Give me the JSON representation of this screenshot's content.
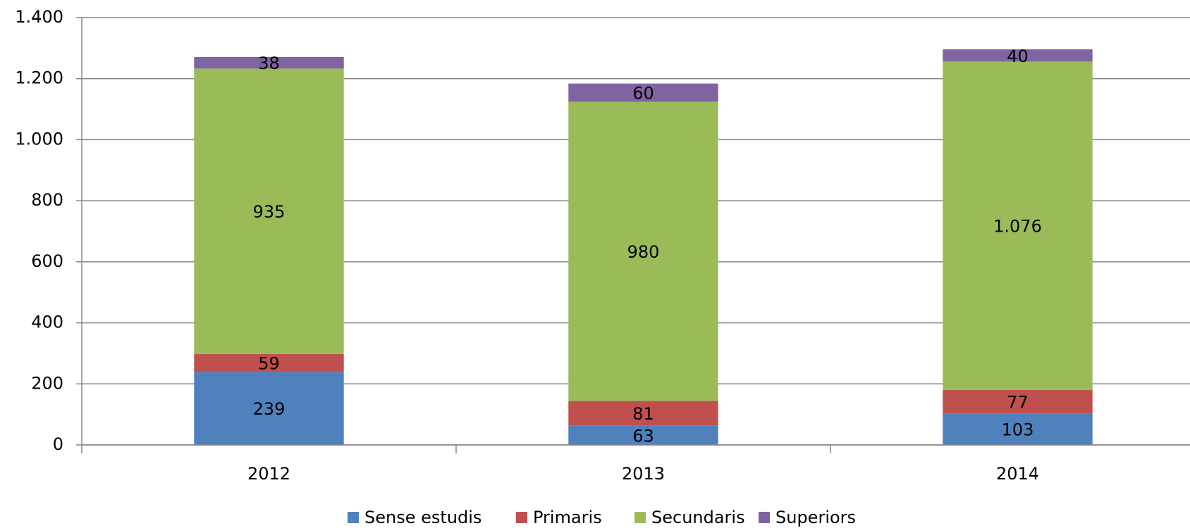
{
  "chart_data": {
    "type": "bar",
    "stacked": true,
    "categories": [
      "2012",
      "2013",
      "2014"
    ],
    "series": [
      {
        "name": "Sense estudis",
        "color": "#4f81bd",
        "values": [
          239,
          63,
          103
        ]
      },
      {
        "name": "Primaris",
        "color": "#c0504d",
        "values": [
          59,
          81,
          77
        ]
      },
      {
        "name": "Secundaris",
        "color": "#9bbb59",
        "values": [
          935,
          980,
          1076
        ],
        "value_labels": [
          "935",
          "980",
          "1.076"
        ]
      },
      {
        "name": "Superiors",
        "color": "#8064a2",
        "values": [
          38,
          60,
          40
        ]
      }
    ],
    "ylim": [
      0,
      1400
    ],
    "yticks": [
      0,
      200,
      400,
      600,
      800,
      {
        "value": 1000,
        "label": "1.000"
      },
      {
        "value": 1200,
        "label": "1.200"
      },
      {
        "value": 1400,
        "label": "1.400"
      }
    ],
    "grid": true,
    "legend": "bottom"
  }
}
